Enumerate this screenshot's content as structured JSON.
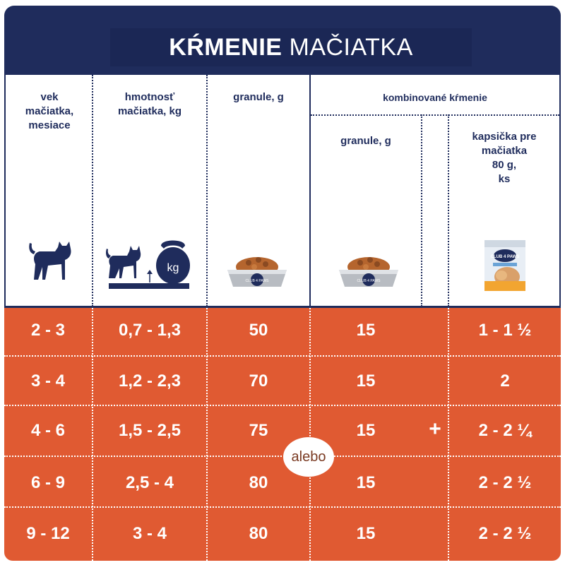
{
  "title": {
    "strong": "KŔMENIE",
    "light": "MAČIATKA"
  },
  "columns": {
    "age": "vek\nmačiatka,\nmesiace",
    "weight": "hmotnosť\nmačiatka, kg",
    "dry": "granule, g",
    "combined": "kombinované kŕmenie",
    "combined_dry": "granule, g",
    "pouch": "kapsička pre\nmačiatka\n80 g,\nks"
  },
  "icons": {
    "weight_label": "kg",
    "bowl_brand": "CLUB 4 PAWS",
    "pouch_brand": "CLUB 4 PAWS"
  },
  "rows": [
    {
      "age": "2 - 3",
      "weight": "0,7 - 1,3",
      "dry": "50",
      "combined_dry": "15",
      "pouch": "1 - 1 ½"
    },
    {
      "age": "3 - 4",
      "weight": "1,2 - 2,3",
      "dry": "70",
      "combined_dry": "15",
      "pouch": "2"
    },
    {
      "age": "4 - 6",
      "weight": "1,5 - 2,5",
      "dry": "75",
      "combined_dry": "15",
      "pouch": "2 - 2 ¼"
    },
    {
      "age": "6 - 9",
      "weight": "2,5 - 4",
      "dry": "80",
      "combined_dry": "15",
      "pouch": "2 - 2 ½"
    },
    {
      "age": "9 - 12",
      "weight": "3 - 4",
      "dry": "80",
      "combined_dry": "15",
      "pouch": "2 - 2 ½"
    }
  ],
  "plus_sign": "+",
  "or_label": "alebo",
  "colors": {
    "navy": "#1f2c5c",
    "orange": "#e05a32",
    "white": "#ffffff"
  }
}
